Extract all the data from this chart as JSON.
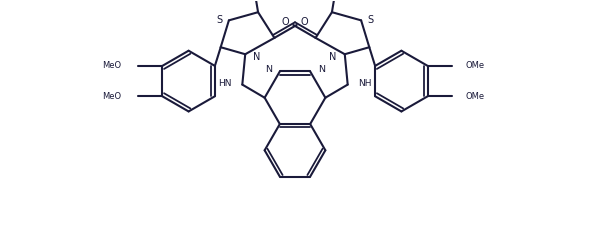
{
  "bg_color": "#ffffff",
  "line_color": "#1a1a3a",
  "line_width": 1.5,
  "figsize": [
    5.9,
    2.48
  ],
  "dpi": 100,
  "xlim": [
    0,
    10.0
  ],
  "ylim": [
    0,
    4.2
  ]
}
